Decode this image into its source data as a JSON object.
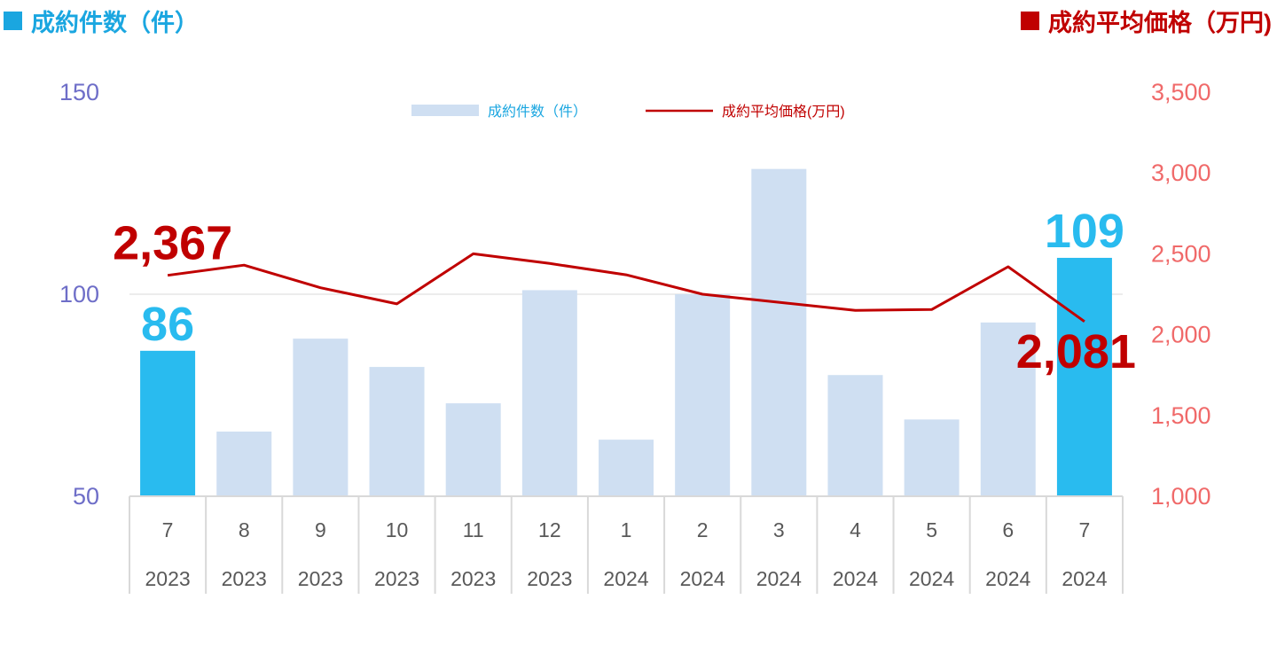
{
  "header": {
    "left_title": "成約件数（件）",
    "right_title": "成約平均価格（万円)",
    "left_color": "#1aa6e0",
    "right_color": "#c00000"
  },
  "legend": {
    "bar_label": "成約件数（件）",
    "line_label": "成約平均価格(万円)"
  },
  "chart_data": {
    "type": "bar",
    "categories": [
      "7",
      "8",
      "9",
      "10",
      "11",
      "12",
      "1",
      "2",
      "3",
      "4",
      "5",
      "6",
      "7"
    ],
    "years": [
      "2023",
      "2023",
      "2023",
      "2023",
      "2023",
      "2023",
      "2024",
      "2024",
      "2024",
      "2024",
      "2024",
      "2024",
      "2024"
    ],
    "series": [
      {
        "name": "成約件数（件）",
        "type": "bar",
        "axis": "left",
        "values": [
          86,
          66,
          89,
          82,
          73,
          101,
          64,
          100,
          131,
          80,
          69,
          93,
          109
        ],
        "color": "#cfdff2",
        "highlight_color": "#29bbef",
        "highlight_indices": [
          0,
          12
        ]
      },
      {
        "name": "成約平均価格(万円)",
        "type": "line",
        "axis": "right",
        "values": [
          2367,
          2430,
          2290,
          2190,
          2500,
          2440,
          2370,
          2250,
          2200,
          2150,
          2155,
          2420,
          2081
        ],
        "color": "#c00000"
      }
    ],
    "left_axis": {
      "min": 50,
      "max": 150,
      "ticks": [
        "50",
        "100",
        "150"
      ],
      "color": "#6e6ec8"
    },
    "right_axis": {
      "min": 1000,
      "max": 3500,
      "ticks": [
        "1,000",
        "1,500",
        "2,000",
        "2,500",
        "3,000",
        "3,500"
      ],
      "color": "#f06a6a"
    },
    "gridlines": [
      100
    ],
    "data_labels": [
      {
        "series": 0,
        "index": 0,
        "text": "86"
      },
      {
        "series": 0,
        "index": 12,
        "text": "109"
      },
      {
        "series": 1,
        "index": 0,
        "text": "2,367"
      },
      {
        "series": 1,
        "index": 12,
        "text": "2,081"
      }
    ],
    "legend_position": "top-center"
  }
}
